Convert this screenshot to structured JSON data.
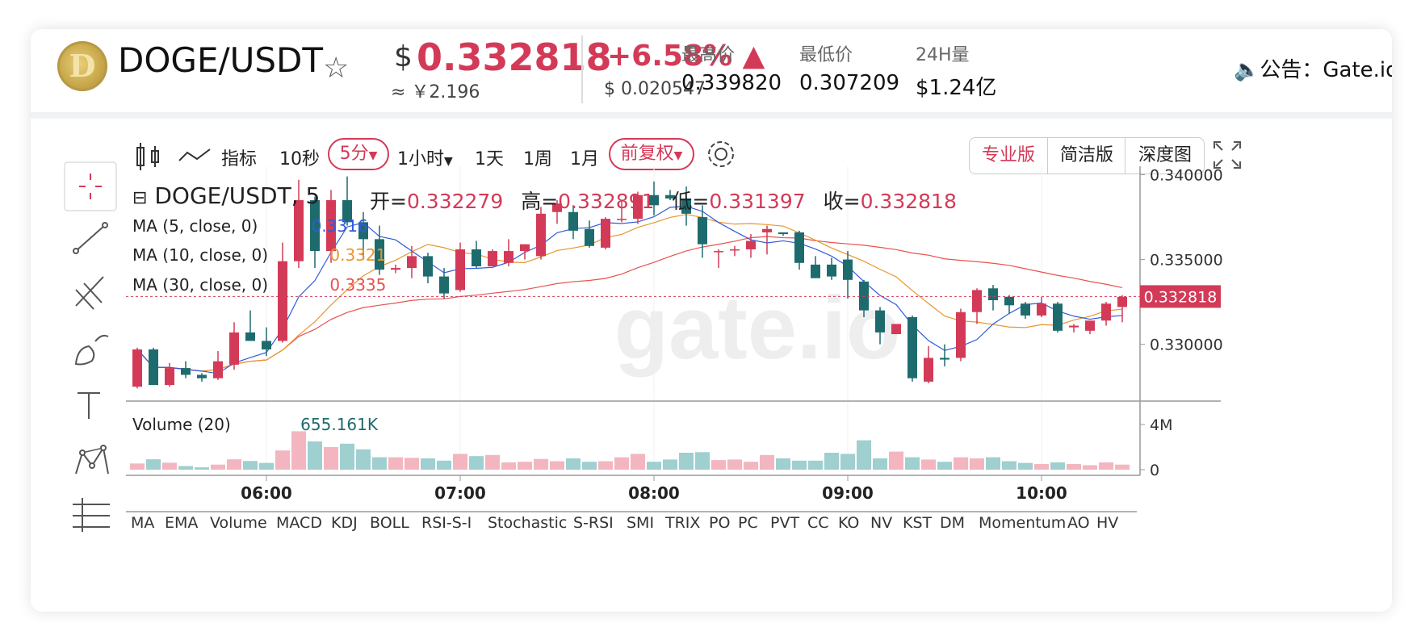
{
  "header": {
    "pair": "DOGE/USDT",
    "currency_symbol": "$",
    "price": "0.332818",
    "price_cny": "≈ ￥2.196",
    "change_pct": "+6.58%",
    "change_abs": "$ 0.020547",
    "high_label": "最高价",
    "high_value": "0.339820",
    "low_label": "最低价",
    "low_value": "0.307209",
    "vol_label": "24H量",
    "vol_value": "$1.24亿",
    "notice": "公告：Gate.io",
    "colors": {
      "up": "#d33a57",
      "down": "#1e6b6e"
    }
  },
  "toolbar": {
    "indicator": "指标",
    "intervals": [
      "10秒",
      "5分",
      "1小时",
      "1天",
      "1周",
      "1月"
    ],
    "active_interval": "5分",
    "adjust": "前复权",
    "versions": [
      "专业版",
      "简洁版",
      "深度图"
    ],
    "active_version": "专业版"
  },
  "legend": {
    "title": "DOGE/USDT, 5",
    "open_label": "开=",
    "open": "0.332279",
    "high_label": "高=",
    "high": "0.332891",
    "low_label": "低=",
    "low": "0.331397",
    "close_label": "收=",
    "close": "0.332818",
    "ma5": {
      "label": "MA (5, close, 0)",
      "value": "0.3316",
      "color": "#2f5bd9"
    },
    "ma10": {
      "label": "MA (10, close, 0)",
      "value": "0.3321",
      "color": "#e8962e"
    },
    "ma30": {
      "label": "MA (30, close, 0)",
      "value": "0.3335",
      "color": "#e8524f"
    },
    "volume": {
      "label": "Volume (20)",
      "value": "655.161K"
    }
  },
  "watermark": "gate.io",
  "indicators": [
    "MA",
    "EMA",
    "Volume",
    "MACD",
    "KDJ",
    "BOLL",
    "RSI-S-I",
    "Stochastic",
    "S-RSI",
    "SMI",
    "TRIX",
    "PO",
    "PC",
    "PVT",
    "CC",
    "KO",
    "NV",
    "KST",
    "DM",
    "Momentum",
    "AO",
    "HV"
  ],
  "chart_data": {
    "type": "candlestick",
    "y_ticks": [
      "0.340000",
      "0.335000",
      "0.330000"
    ],
    "ylim": [
      0.3267,
      0.3405
    ],
    "current_price": "0.332818",
    "x_ticks": [
      "06:00",
      "07:00",
      "08:00",
      "09:00",
      "10:00"
    ],
    "volume_ticks": [
      "4M",
      "0"
    ],
    "volume_max": 4000000,
    "candles": [
      {
        "o": 0.3275,
        "h": 0.3298,
        "l": 0.3274,
        "c": 0.3297,
        "v": 550000
      },
      {
        "o": 0.3297,
        "h": 0.3298,
        "l": 0.3276,
        "c": 0.3276,
        "v": 920000
      },
      {
        "o": 0.3276,
        "h": 0.3289,
        "l": 0.3275,
        "c": 0.3286,
        "v": 620000
      },
      {
        "o": 0.3286,
        "h": 0.329,
        "l": 0.328,
        "c": 0.3282,
        "v": 320000
      },
      {
        "o": 0.3282,
        "h": 0.3283,
        "l": 0.3278,
        "c": 0.328,
        "v": 210000
      },
      {
        "o": 0.328,
        "h": 0.3296,
        "l": 0.3279,
        "c": 0.329,
        "v": 450000
      },
      {
        "o": 0.3288,
        "h": 0.3313,
        "l": 0.3285,
        "c": 0.3307,
        "v": 920000
      },
      {
        "o": 0.3307,
        "h": 0.332,
        "l": 0.3303,
        "c": 0.3302,
        "v": 770000
      },
      {
        "o": 0.3302,
        "h": 0.331,
        "l": 0.3293,
        "c": 0.3297,
        "v": 600000
      },
      {
        "o": 0.3302,
        "h": 0.336,
        "l": 0.3301,
        "c": 0.3349,
        "v": 1700000
      },
      {
        "o": 0.3349,
        "h": 0.3397,
        "l": 0.3345,
        "c": 0.3385,
        "v": 3400000
      },
      {
        "o": 0.3385,
        "h": 0.3387,
        "l": 0.3345,
        "c": 0.3355,
        "v": 2500000
      },
      {
        "o": 0.3355,
        "h": 0.3391,
        "l": 0.3348,
        "c": 0.3385,
        "v": 2000000
      },
      {
        "o": 0.3385,
        "h": 0.3399,
        "l": 0.337,
        "c": 0.3372,
        "v": 2300000
      },
      {
        "o": 0.3372,
        "h": 0.3378,
        "l": 0.335,
        "c": 0.3362,
        "v": 1800000
      },
      {
        "o": 0.3362,
        "h": 0.337,
        "l": 0.3341,
        "c": 0.3344,
        "v": 1100000
      },
      {
        "o": 0.3344,
        "h": 0.3347,
        "l": 0.3342,
        "c": 0.3345,
        "v": 1100000
      },
      {
        "o": 0.3345,
        "h": 0.3358,
        "l": 0.3339,
        "c": 0.3352,
        "v": 1050000
      },
      {
        "o": 0.3352,
        "h": 0.3354,
        "l": 0.3336,
        "c": 0.334,
        "v": 1000000
      },
      {
        "o": 0.334,
        "h": 0.3345,
        "l": 0.3327,
        "c": 0.333,
        "v": 800000
      },
      {
        "o": 0.3332,
        "h": 0.336,
        "l": 0.3331,
        "c": 0.3356,
        "v": 1400000
      },
      {
        "o": 0.3356,
        "h": 0.3361,
        "l": 0.3345,
        "c": 0.3346,
        "v": 1200000
      },
      {
        "o": 0.3346,
        "h": 0.3356,
        "l": 0.3346,
        "c": 0.3355,
        "v": 1300000
      },
      {
        "o": 0.3348,
        "h": 0.3362,
        "l": 0.3346,
        "c": 0.3355,
        "v": 650000
      },
      {
        "o": 0.3355,
        "h": 0.3359,
        "l": 0.335,
        "c": 0.3359,
        "v": 700000
      },
      {
        "o": 0.3352,
        "h": 0.3381,
        "l": 0.335,
        "c": 0.3377,
        "v": 950000
      },
      {
        "o": 0.3378,
        "h": 0.3385,
        "l": 0.3371,
        "c": 0.3383,
        "v": 750000
      },
      {
        "o": 0.3378,
        "h": 0.3382,
        "l": 0.3362,
        "c": 0.3367,
        "v": 1000000
      },
      {
        "o": 0.3368,
        "h": 0.3373,
        "l": 0.3357,
        "c": 0.3358,
        "v": 700000
      },
      {
        "o": 0.3357,
        "h": 0.3375,
        "l": 0.3356,
        "c": 0.3374,
        "v": 750000
      },
      {
        "o": 0.3374,
        "h": 0.3385,
        "l": 0.3372,
        "c": 0.3374,
        "v": 1100000
      },
      {
        "o": 0.3374,
        "h": 0.339,
        "l": 0.3371,
        "c": 0.3388,
        "v": 1400000
      },
      {
        "o": 0.3388,
        "h": 0.3396,
        "l": 0.3376,
        "c": 0.3382,
        "v": 700000
      },
      {
        "o": 0.3388,
        "h": 0.3391,
        "l": 0.3385,
        "c": 0.3386,
        "v": 900000
      },
      {
        "o": 0.3386,
        "h": 0.3393,
        "l": 0.337,
        "c": 0.3377,
        "v": 1500000
      },
      {
        "o": 0.3375,
        "h": 0.3382,
        "l": 0.3351,
        "c": 0.3359,
        "v": 1550000
      },
      {
        "o": 0.3355,
        "h": 0.3356,
        "l": 0.3345,
        "c": 0.3355,
        "v": 850000
      },
      {
        "o": 0.3356,
        "h": 0.3358,
        "l": 0.3352,
        "c": 0.3356,
        "v": 900000
      },
      {
        "o": 0.3356,
        "h": 0.3365,
        "l": 0.3351,
        "c": 0.3361,
        "v": 700000
      },
      {
        "o": 0.3366,
        "h": 0.337,
        "l": 0.3353,
        "c": 0.3368,
        "v": 1300000
      },
      {
        "o": 0.3366,
        "h": 0.3366,
        "l": 0.3364,
        "c": 0.3365,
        "v": 1000000
      },
      {
        "o": 0.3366,
        "h": 0.3367,
        "l": 0.3344,
        "c": 0.3348,
        "v": 800000
      },
      {
        "o": 0.3347,
        "h": 0.3352,
        "l": 0.3339,
        "c": 0.3339,
        "v": 800000
      },
      {
        "o": 0.3347,
        "h": 0.3351,
        "l": 0.3338,
        "c": 0.334,
        "v": 1500000
      },
      {
        "o": 0.335,
        "h": 0.3355,
        "l": 0.3327,
        "c": 0.3338,
        "v": 1400000
      },
      {
        "o": 0.3337,
        "h": 0.3338,
        "l": 0.3316,
        "c": 0.332,
        "v": 2600000
      },
      {
        "o": 0.332,
        "h": 0.3322,
        "l": 0.33,
        "c": 0.3307,
        "v": 1000000
      },
      {
        "o": 0.3306,
        "h": 0.3312,
        "l": 0.3306,
        "c": 0.3312,
        "v": 1600000
      },
      {
        "o": 0.3316,
        "h": 0.3317,
        "l": 0.3278,
        "c": 0.328,
        "v": 1100000
      },
      {
        "o": 0.3278,
        "h": 0.3299,
        "l": 0.3277,
        "c": 0.3292,
        "v": 900000
      },
      {
        "o": 0.3292,
        "h": 0.33,
        "l": 0.3287,
        "c": 0.3291,
        "v": 700000
      },
      {
        "o": 0.3292,
        "h": 0.3321,
        "l": 0.329,
        "c": 0.3319,
        "v": 1100000
      },
      {
        "o": 0.3319,
        "h": 0.3333,
        "l": 0.3312,
        "c": 0.3332,
        "v": 1000000
      },
      {
        "o": 0.3333,
        "h": 0.3335,
        "l": 0.332,
        "c": 0.3326,
        "v": 1100000
      },
      {
        "o": 0.3328,
        "h": 0.3329,
        "l": 0.3318,
        "c": 0.3323,
        "v": 750000
      },
      {
        "o": 0.3324,
        "h": 0.3325,
        "l": 0.3315,
        "c": 0.3317,
        "v": 600000
      },
      {
        "o": 0.3317,
        "h": 0.3328,
        "l": 0.3316,
        "c": 0.3324,
        "v": 500000
      },
      {
        "o": 0.3324,
        "h": 0.3325,
        "l": 0.3307,
        "c": 0.3308,
        "v": 650000
      },
      {
        "o": 0.331,
        "h": 0.3312,
        "l": 0.3307,
        "c": 0.3311,
        "v": 500000
      },
      {
        "o": 0.3308,
        "h": 0.3313,
        "l": 0.3306,
        "c": 0.3314,
        "v": 400000
      },
      {
        "o": 0.3314,
        "h": 0.3325,
        "l": 0.3311,
        "c": 0.3324,
        "v": 650000
      },
      {
        "o": 0.3322,
        "h": 0.3329,
        "l": 0.3313,
        "c": 0.3328,
        "v": 450000
      }
    ]
  }
}
